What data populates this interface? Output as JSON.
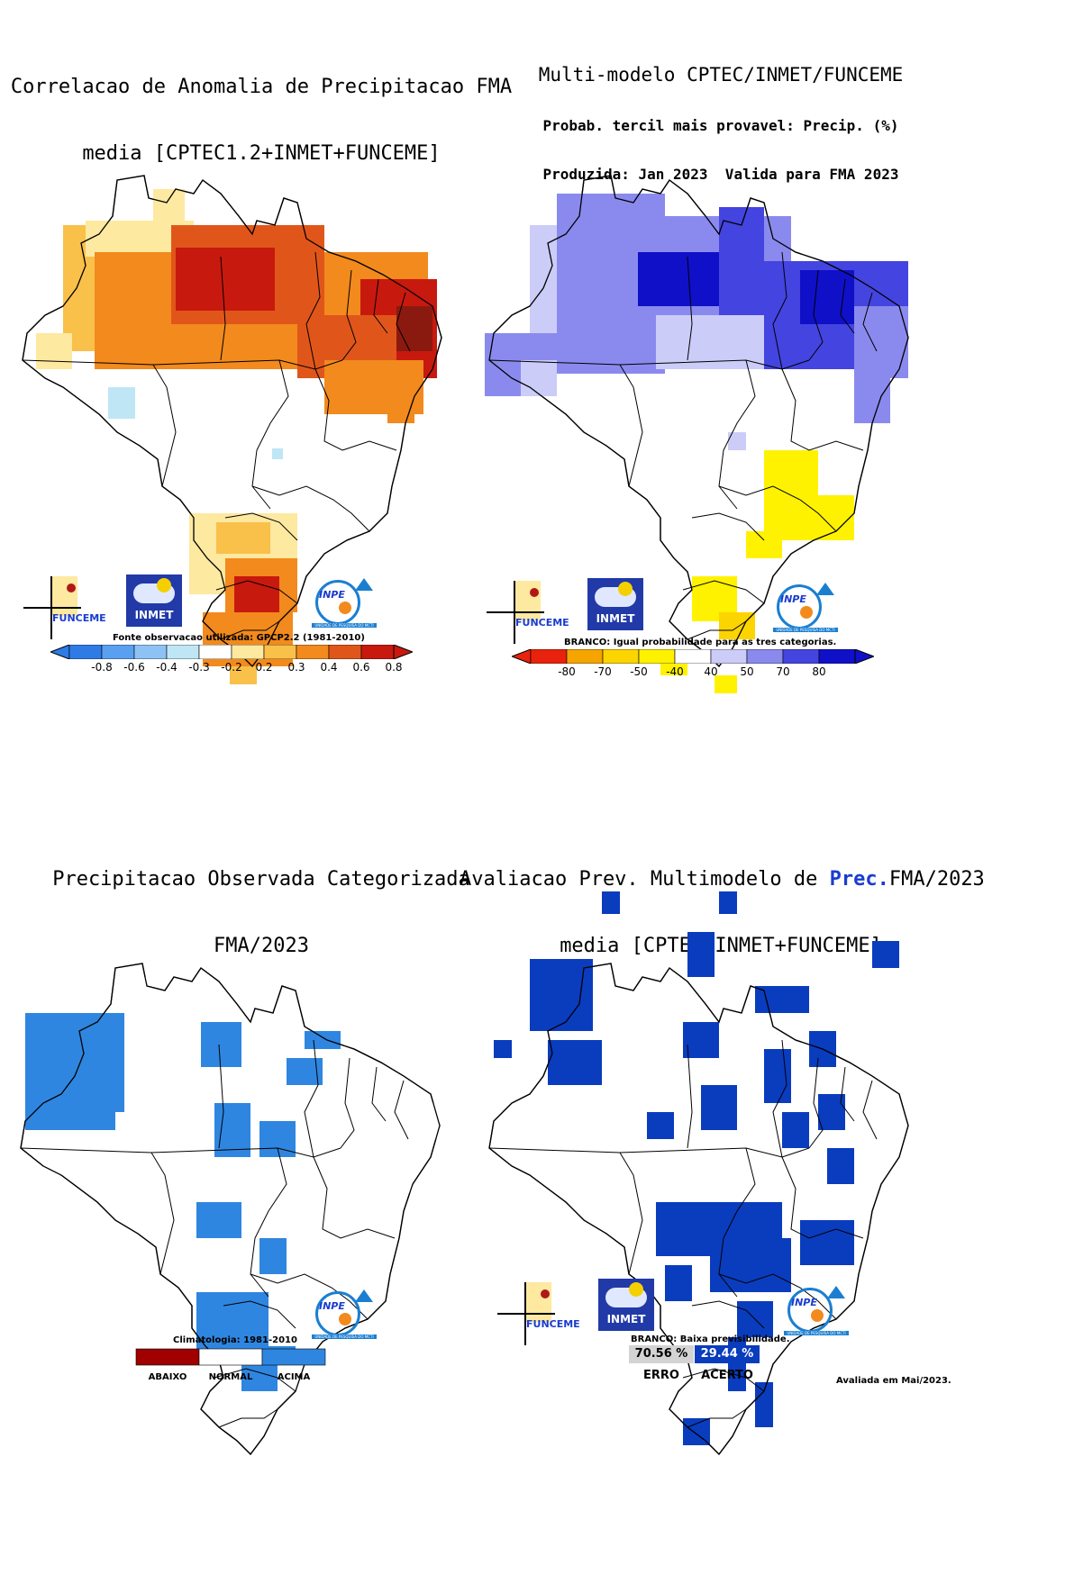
{
  "panels": {
    "p1": {
      "title_line1": "Correlacao de Anomalia de Precipitacao FMA",
      "title_line2": "media [CPTEC1.2+INMET+FUNCEME]",
      "legend_caption": "Fonte observacao utilizada: GPCP2.2 (1981-2010)",
      "ticks": [
        "-0.8",
        "-0.6",
        "-0.4",
        "-0.3",
        "-0.2",
        "0.2",
        "0.3",
        "0.4",
        "0.6",
        "0.8"
      ],
      "colors": [
        "#2e7be6",
        "#5aa0f0",
        "#8ec2f5",
        "#bfe6f4",
        "#ffffff",
        "#fde9a0",
        "#f9c04a",
        "#f28a1d",
        "#e0561a",
        "#c8190e"
      ]
    },
    "p2": {
      "title_line1": "Multi-modelo CPTEC/INMET/FUNCEME",
      "title_line2": "Probab. tercil mais provavel: Precip. (%)",
      "title_line3": "Produzida: Jan 2023  Valida para FMA 2023",
      "legend_caption": "BRANCO: Igual probabilidade para as tres categorias.",
      "ticks": [
        "-80",
        "-70",
        "-50",
        "-40",
        "40",
        "50",
        "70",
        "80"
      ],
      "colors": [
        "#e8220c",
        "#f5a400",
        "#fcd400",
        "#fff200",
        "#ffffff",
        "#ccccf8",
        "#8a8aee",
        "#4444e0",
        "#1010c8"
      ]
    },
    "p3": {
      "title_line1": "Precipitacao Observada Categorizada",
      "title_line2": "FMA/2023",
      "legend_caption": "Climatologia: 1981-2010",
      "categories": [
        "ABAIXO",
        "NORMAL",
        "ACIMA"
      ],
      "colors": [
        "#a00000",
        "#ffffff",
        "#2f86e0"
      ]
    },
    "p4": {
      "title_pre": "Avaliacao Prev. Multimodelo de ",
      "title_highlight": "Prec.",
      "title_post": "FMA/2023",
      "title_line2": "media [CPTEC+INMET+FUNCEME]",
      "legend_caption": "BRANCO: Baixa previsibilidade.",
      "erro_value": "70.56 %",
      "acerto_value": "29.44 %",
      "erro_label": "ERRO",
      "acerto_label": "ACERTO",
      "colors": {
        "erro": "#d3d3d3",
        "acerto": "#0a3cbe"
      }
    }
  },
  "logos": {
    "funceme": "FUNCEME",
    "inmet": "INMET",
    "inpe": "INPE",
    "inpe_sub": "UNIDADE DE PESQUISA DO MCTI"
  },
  "footer": "Avaliada em Mai/2023."
}
